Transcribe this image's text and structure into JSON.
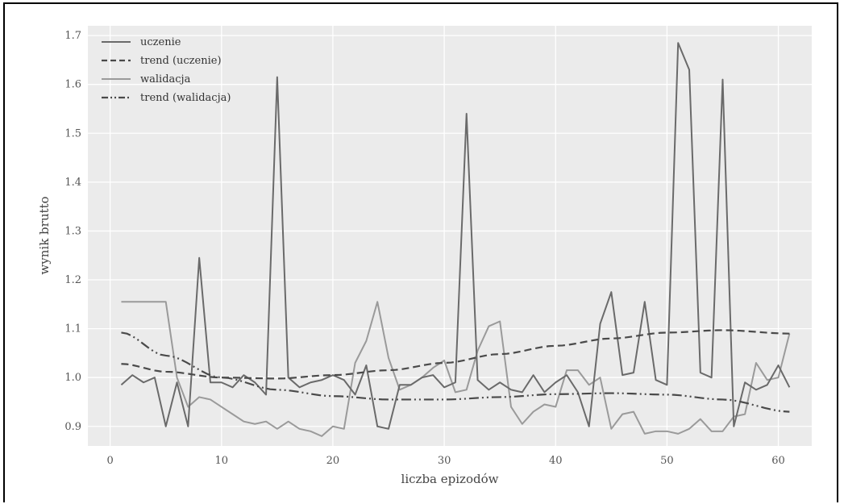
{
  "chart_data": {
    "type": "line",
    "xlabel": "liczba epizodów",
    "ylabel": "wynik brutto",
    "xlim": [
      -2,
      63
    ],
    "ylim": [
      0.86,
      1.72
    ],
    "xticks": [
      0,
      10,
      20,
      30,
      40,
      50,
      60
    ],
    "yticks": [
      0.9,
      1.0,
      1.1,
      1.2,
      1.3,
      1.4,
      1.5,
      1.6,
      1.7
    ],
    "grid": true,
    "legend_position": "top-left",
    "colors": {
      "background": "#ebebeb",
      "grid": "#ffffff",
      "uczenie": "#6a6a6a",
      "walidacja": "#9a9a9a",
      "trend_uczenie": "#4a4a4a",
      "trend_walidacja": "#4a4a4a"
    },
    "series": [
      {
        "name": "uczenie",
        "style": "solid",
        "x": [
          1,
          2,
          3,
          4,
          5,
          6,
          7,
          8,
          9,
          10,
          11,
          12,
          13,
          14,
          15,
          16,
          17,
          18,
          19,
          20,
          21,
          22,
          23,
          24,
          25,
          26,
          27,
          28,
          29,
          30,
          31,
          32,
          33,
          34,
          35,
          36,
          37,
          38,
          39,
          40,
          41,
          42,
          43,
          44,
          45,
          46,
          47,
          48,
          49,
          50,
          51,
          52,
          53,
          54,
          55,
          56,
          57,
          58,
          59,
          60,
          61
        ],
        "values": [
          0.985,
          1.005,
          0.99,
          1.0,
          0.9,
          0.99,
          0.9,
          1.245,
          0.99,
          0.99,
          0.98,
          1.005,
          0.99,
          0.965,
          1.615,
          1.0,
          0.98,
          0.99,
          0.995,
          1.005,
          0.995,
          0.965,
          1.025,
          0.9,
          0.895,
          0.985,
          0.985,
          1.0,
          1.005,
          0.98,
          0.99,
          1.54,
          0.995,
          0.975,
          0.99,
          0.975,
          0.97,
          1.005,
          0.97,
          0.99,
          1.005,
          0.97,
          0.9,
          1.11,
          1.175,
          1.005,
          1.01,
          1.155,
          0.995,
          0.985,
          1.685,
          1.63,
          1.01,
          1.0,
          1.61,
          0.9,
          0.99,
          0.975,
          0.985,
          1.025,
          0.98
        ]
      },
      {
        "name": "trend (uczenie)",
        "style": "dashed",
        "x": [
          1,
          5,
          10,
          15,
          20,
          25,
          30,
          35,
          40,
          45,
          50,
          55,
          61
        ],
        "values": [
          1.028,
          1.012,
          1.0,
          0.998,
          1.005,
          1.015,
          1.03,
          1.048,
          1.065,
          1.08,
          1.092,
          1.097,
          1.09
        ]
      },
      {
        "name": "walidacja",
        "style": "solid",
        "x": [
          1,
          2,
          3,
          4,
          5,
          6,
          7,
          8,
          9,
          10,
          11,
          12,
          13,
          14,
          15,
          16,
          17,
          18,
          19,
          20,
          21,
          22,
          23,
          24,
          25,
          26,
          27,
          28,
          29,
          30,
          31,
          32,
          33,
          34,
          35,
          36,
          37,
          38,
          39,
          40,
          41,
          42,
          43,
          44,
          45,
          46,
          47,
          48,
          49,
          50,
          51,
          52,
          53,
          54,
          55,
          56,
          57,
          58,
          59,
          60,
          61
        ],
        "values": [
          1.155,
          1.155,
          1.155,
          1.155,
          1.155,
          1.0,
          0.94,
          0.96,
          0.955,
          0.94,
          0.925,
          0.91,
          0.905,
          0.91,
          0.895,
          0.91,
          0.895,
          0.89,
          0.88,
          0.9,
          0.895,
          1.03,
          1.075,
          1.155,
          1.04,
          0.975,
          0.985,
          1.0,
          1.02,
          1.035,
          0.97,
          0.975,
          1.055,
          1.105,
          1.115,
          0.94,
          0.905,
          0.93,
          0.945,
          0.94,
          1.015,
          1.015,
          0.985,
          1.0,
          0.895,
          0.925,
          0.93,
          0.885,
          0.89,
          0.89,
          0.885,
          0.895,
          0.915,
          0.89,
          0.89,
          0.92,
          0.925,
          1.03,
          0.995,
          1.0,
          1.09
        ]
      },
      {
        "name": "trend (walidacja)",
        "style": "dashdot",
        "x": [
          1,
          5,
          10,
          15,
          20,
          25,
          30,
          35,
          40,
          45,
          50,
          55,
          61
        ],
        "values": [
          1.092,
          1.045,
          1.0,
          0.975,
          0.962,
          0.955,
          0.955,
          0.96,
          0.966,
          0.968,
          0.965,
          0.955,
          0.93
        ]
      }
    ]
  }
}
